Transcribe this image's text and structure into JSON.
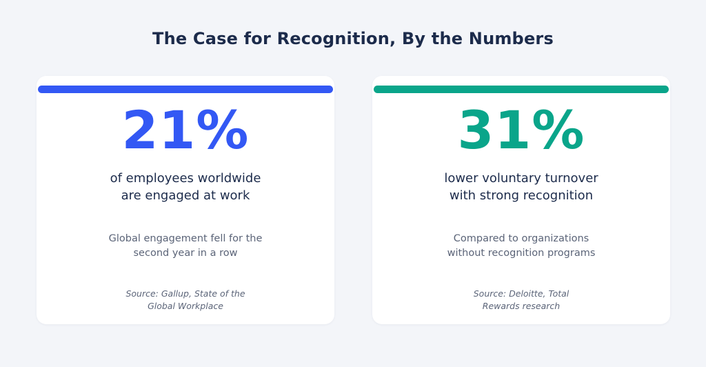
{
  "title": "The Case for Recognition, By the Numbers",
  "cards": [
    {
      "value": "21%",
      "accent_color": "#3358f4",
      "label_lines": [
        "of employees worldwide",
        "are engaged at work"
      ],
      "note_lines": [
        "Global engagement fell for the",
        "second year in a row"
      ],
      "source_lines": [
        "Source: Gallup, State of the",
        "Global Workplace"
      ]
    },
    {
      "value": "31%",
      "accent_color": "#0aa58a",
      "label_lines": [
        "lower voluntary turnover",
        "with strong recognition"
      ],
      "note_lines": [
        "Compared to organizations",
        "without recognition programs"
      ],
      "source_lines": [
        "Source: Deloitte, Total",
        "Rewards research"
      ]
    }
  ]
}
